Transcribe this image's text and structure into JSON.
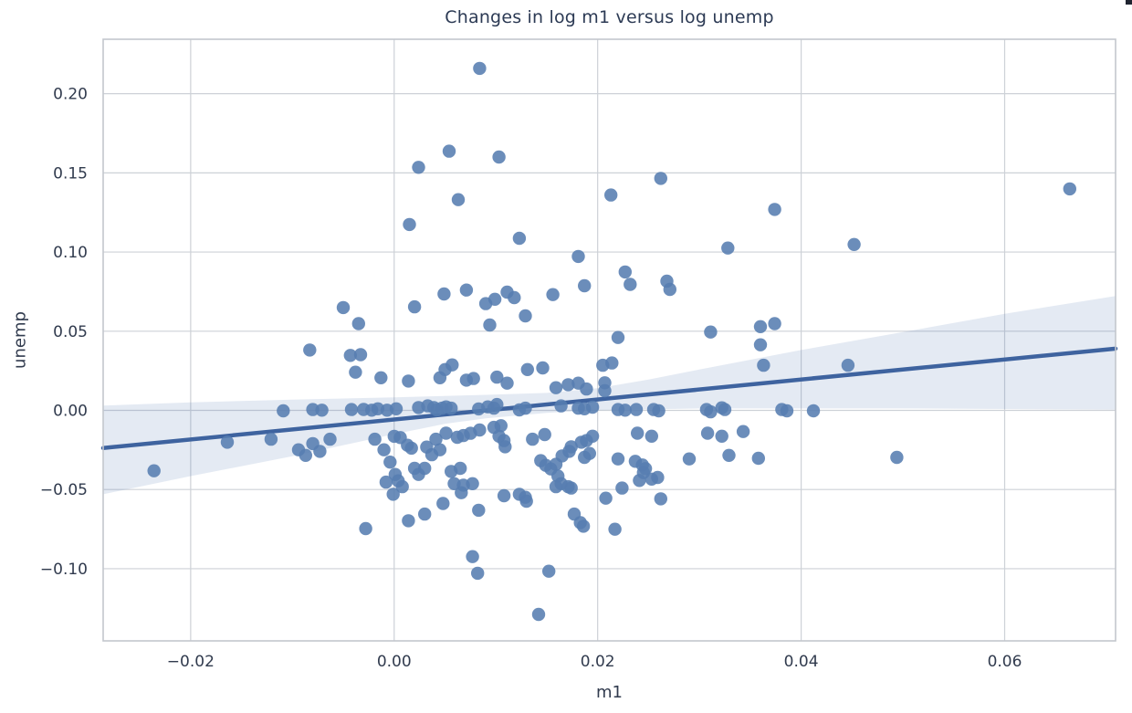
{
  "chart_data": {
    "type": "scatter",
    "title": "Changes in log m1 versus log unemp",
    "xlabel": "m1",
    "ylabel": "unemp",
    "xlim": [
      -0.0286,
      0.0709
    ],
    "ylim": [
      -0.1456,
      0.2344
    ],
    "grid": true,
    "legend": "none",
    "x_ticks": [
      -0.02,
      0.0,
      0.02,
      0.04,
      0.06
    ],
    "x_tick_labels": [
      "−0.02",
      "0.00",
      "0.02",
      "0.04",
      "0.06"
    ],
    "y_ticks": [
      0.2,
      0.15,
      0.1,
      0.05,
      0.0,
      -0.05,
      -0.1
    ],
    "y_tick_labels": [
      "0.20",
      "0.15",
      "0.10",
      "0.05",
      "0.00",
      "−0.05",
      "−0.10"
    ],
    "colors": {
      "point": "#567db1",
      "regression_line": "#3e639f",
      "confidence_band": "#4c72b0",
      "confidence_band_opacity": 0.15,
      "grid": "#cdd1d7",
      "spine": "#c3c7cd",
      "tick_text": "#313b4e",
      "title_text": "#2c3a54"
    },
    "regression_line": {
      "x": [
        -0.0286,
        0.0709
      ],
      "y": [
        -0.0238,
        0.039
      ]
    },
    "confidence_band": {
      "top": [
        [
          -0.0286,
          0.003
        ],
        [
          -0.02,
          0.005
        ],
        [
          -0.01,
          0.0068
        ],
        [
          0.0,
          0.0082
        ],
        [
          0.009,
          0.0098
        ],
        [
          0.015,
          0.011
        ],
        [
          0.02,
          0.014
        ],
        [
          0.025,
          0.0195
        ],
        [
          0.03,
          0.0258
        ],
        [
          0.04,
          0.0381
        ],
        [
          0.05,
          0.0495
        ],
        [
          0.06,
          0.061
        ],
        [
          0.0709,
          0.0722
        ]
      ],
      "bottom": [
        [
          -0.0286,
          -0.053
        ],
        [
          -0.02,
          -0.0415
        ],
        [
          -0.01,
          -0.029
        ],
        [
          0.0,
          -0.015
        ],
        [
          0.005,
          -0.0085
        ],
        [
          0.009,
          -0.005
        ],
        [
          0.015,
          -0.0016
        ],
        [
          0.02,
          0.0002
        ],
        [
          0.03,
          0.0012
        ],
        [
          0.05,
          0.0012
        ],
        [
          0.0709,
          0.0005
        ]
      ]
    },
    "points": [
      [
        0.0084,
        0.216
      ],
      [
        0.0024,
        0.1535
      ],
      [
        0.0054,
        0.1637
      ],
      [
        0.0103,
        0.16
      ],
      [
        0.0015,
        0.1174
      ],
      [
        0.0262,
        0.1465
      ],
      [
        0.0063,
        0.1331
      ],
      [
        0.0213,
        0.136
      ],
      [
        0.0374,
        0.1269
      ],
      [
        0.0123,
        0.1087
      ],
      [
        0.0181,
        0.0972
      ],
      [
        0.0328,
        0.1025
      ],
      [
        0.0664,
        0.1399
      ],
      [
        0.0452,
        0.1048
      ],
      [
        0.0071,
        0.076
      ],
      [
        0.009,
        0.0674
      ],
      [
        0.0099,
        0.0702
      ],
      [
        0.0111,
        0.0747
      ],
      [
        0.0118,
        0.0712
      ],
      [
        0.0129,
        0.0597
      ],
      [
        0.0094,
        0.0539
      ],
      [
        0.0156,
        0.0731
      ],
      [
        0.0187,
        0.0787
      ],
      [
        0.0227,
        0.0874
      ],
      [
        0.0232,
        0.0796
      ],
      [
        0.0268,
        0.0816
      ],
      [
        0.0271,
        0.0764
      ],
      [
        0.022,
        0.046
      ],
      [
        0.0311,
        0.0495
      ],
      [
        0.036,
        0.0529
      ],
      [
        0.0374,
        0.0548
      ],
      [
        0.036,
        0.0414
      ],
      [
        0.0363,
        0.0285
      ],
      [
        0.0446,
        0.0285
      ],
      [
        -0.005,
        0.0649
      ],
      [
        -0.0035,
        0.0548
      ],
      [
        0.002,
        0.0654
      ],
      [
        0.0049,
        0.0735
      ],
      [
        -0.0083,
        0.0381
      ],
      [
        -0.0043,
        0.0347
      ],
      [
        -0.0033,
        0.0352
      ],
      [
        -0.0038,
        0.0241
      ],
      [
        -0.0013,
        0.0206
      ],
      [
        0.0014,
        0.0185
      ],
      [
        0.0045,
        0.0206
      ],
      [
        0.005,
        0.0258
      ],
      [
        0.0057,
        0.0287
      ],
      [
        0.0071,
        0.0191
      ],
      [
        0.0078,
        0.0201
      ],
      [
        0.0101,
        0.021
      ],
      [
        0.0111,
        0.0172
      ],
      [
        0.0131,
        0.0258
      ],
      [
        0.0146,
        0.0268
      ],
      [
        0.0159,
        0.0143
      ],
      [
        0.0171,
        0.0162
      ],
      [
        0.0181,
        0.0172
      ],
      [
        0.0189,
        0.0135
      ],
      [
        0.0205,
        0.0285
      ],
      [
        0.0214,
        0.0299
      ],
      [
        0.0207,
        0.0174
      ],
      [
        0.0207,
        0.0124
      ],
      [
        -0.0109,
        -0.0003
      ],
      [
        -0.008,
        0.0005
      ],
      [
        -0.0071,
        0.0001
      ],
      [
        -0.0042,
        0.0005
      ],
      [
        -0.003,
        0.0006
      ],
      [
        -0.0022,
        0.0001
      ],
      [
        -0.0016,
        0.001
      ],
      [
        -0.0007,
        0.0001
      ],
      [
        0.0002,
        0.001
      ],
      [
        0.0024,
        0.0018
      ],
      [
        0.0033,
        0.0028
      ],
      [
        0.0039,
        0.0018
      ],
      [
        0.0042,
        0.0003
      ],
      [
        0.0047,
        0.0014
      ],
      [
        0.0051,
        0.0022
      ],
      [
        0.0056,
        0.0014
      ],
      [
        0.0083,
        0.0009
      ],
      [
        0.0092,
        0.0022
      ],
      [
        0.0098,
        0.0014
      ],
      [
        0.0101,
        0.0037
      ],
      [
        0.0123,
        0.0003
      ],
      [
        0.0129,
        0.0014
      ],
      [
        0.0164,
        0.0028
      ],
      [
        0.0181,
        0.0014
      ],
      [
        0.0187,
        0.001
      ],
      [
        0.0195,
        0.002
      ],
      [
        0.022,
        0.0005
      ],
      [
        0.0227,
        0.0001
      ],
      [
        0.0238,
        0.0005
      ],
      [
        0.0255,
        0.0005
      ],
      [
        0.026,
        -0.0003
      ],
      [
        0.0307,
        0.0005
      ],
      [
        0.0311,
        -0.0009
      ],
      [
        0.0322,
        0.0016
      ],
      [
        0.0325,
        0.0005
      ],
      [
        0.0381,
        0.0005
      ],
      [
        0.0386,
        -0.0003
      ],
      [
        0.0412,
        -0.0003
      ],
      [
        -0.0236,
        -0.0382
      ],
      [
        -0.0164,
        -0.0201
      ],
      [
        -0.0121,
        -0.0182
      ],
      [
        -0.0094,
        -0.0249
      ],
      [
        -0.0087,
        -0.0284
      ],
      [
        -0.008,
        -0.021
      ],
      [
        -0.0073,
        -0.0259
      ],
      [
        -0.0063,
        -0.0182
      ],
      [
        -0.0019,
        -0.0182
      ],
      [
        -0.001,
        -0.0249
      ],
      [
        0.0,
        -0.0164
      ],
      [
        0.0006,
        -0.0172
      ],
      [
        0.0013,
        -0.022
      ],
      [
        0.0017,
        -0.0239
      ],
      [
        0.0032,
        -0.0232
      ],
      [
        0.0037,
        -0.028
      ],
      [
        0.0041,
        -0.0182
      ],
      [
        0.0045,
        -0.0249
      ],
      [
        0.0051,
        -0.0144
      ],
      [
        0.0062,
        -0.017
      ],
      [
        0.0068,
        -0.0159
      ],
      [
        0.0075,
        -0.0145
      ],
      [
        0.0084,
        -0.0124
      ],
      [
        0.0098,
        -0.0107
      ],
      [
        0.0105,
        -0.0097
      ],
      [
        0.0103,
        -0.0163
      ],
      [
        0.0108,
        -0.0191
      ],
      [
        0.0109,
        -0.023
      ],
      [
        0.0136,
        -0.0182
      ],
      [
        0.0148,
        -0.0153
      ],
      [
        0.0174,
        -0.023
      ],
      [
        0.0184,
        -0.0201
      ],
      [
        0.0189,
        -0.0191
      ],
      [
        0.0195,
        -0.0163
      ],
      [
        0.0239,
        -0.0144
      ],
      [
        0.0253,
        -0.0163
      ],
      [
        0.0308,
        -0.0144
      ],
      [
        0.0322,
        -0.0163
      ],
      [
        0.0343,
        -0.0134
      ],
      [
        0.0494,
        -0.0297
      ],
      [
        0.0165,
        -0.0288
      ],
      [
        0.0172,
        -0.0259
      ],
      [
        0.0187,
        -0.0297
      ],
      [
        0.0192,
        -0.0272
      ],
      [
        0.022,
        -0.0307
      ],
      [
        0.0237,
        -0.0322
      ],
      [
        0.0244,
        -0.0345
      ],
      [
        0.0247,
        -0.0368
      ],
      [
        0.0245,
        -0.0393
      ],
      [
        0.0259,
        -0.0424
      ],
      [
        0.029,
        -0.0307
      ],
      [
        0.0329,
        -0.0284
      ],
      [
        0.0358,
        -0.0303
      ],
      [
        -0.0004,
        -0.0327
      ],
      [
        0.0001,
        -0.0405
      ],
      [
        -0.0008,
        -0.0453
      ],
      [
        0.0004,
        -0.0445
      ],
      [
        -0.0001,
        -0.053
      ],
      [
        0.0008,
        -0.0482
      ],
      [
        0.002,
        -0.0366
      ],
      [
        0.0024,
        -0.0405
      ],
      [
        0.003,
        -0.0366
      ],
      [
        0.0056,
        -0.0386
      ],
      [
        0.0065,
        -0.0366
      ],
      [
        0.0059,
        -0.0463
      ],
      [
        0.0068,
        -0.0472
      ],
      [
        0.0077,
        -0.0463
      ],
      [
        0.0066,
        -0.052
      ],
      [
        0.0108,
        -0.0539
      ],
      [
        0.0123,
        -0.053
      ],
      [
        0.0129,
        -0.0549
      ],
      [
        0.013,
        -0.0574
      ],
      [
        0.0144,
        -0.0318
      ],
      [
        0.0149,
        -0.0347
      ],
      [
        0.0154,
        -0.037
      ],
      [
        0.0159,
        -0.0341
      ],
      [
        0.0161,
        -0.0415
      ],
      [
        0.0164,
        -0.0463
      ],
      [
        0.0171,
        -0.0482
      ],
      [
        0.0159,
        -0.0482
      ],
      [
        0.0174,
        -0.0491
      ],
      [
        0.0208,
        -0.0555
      ],
      [
        0.0224,
        -0.0491
      ],
      [
        0.0241,
        -0.0443
      ],
      [
        0.0253,
        -0.0434
      ],
      [
        0.0262,
        -0.0559
      ],
      [
        -0.0028,
        -0.0747
      ],
      [
        0.0014,
        -0.0697
      ],
      [
        0.003,
        -0.0655
      ],
      [
        0.0048,
        -0.0588
      ],
      [
        0.0083,
        -0.0631
      ],
      [
        0.0177,
        -0.0655
      ],
      [
        0.0183,
        -0.0709
      ],
      [
        0.0186,
        -0.0732
      ],
      [
        0.0217,
        -0.0751
      ],
      [
        0.0077,
        -0.0924
      ],
      [
        0.0082,
        -0.1029
      ],
      [
        0.0152,
        -0.1016
      ],
      [
        0.0142,
        -0.1289
      ]
    ]
  }
}
